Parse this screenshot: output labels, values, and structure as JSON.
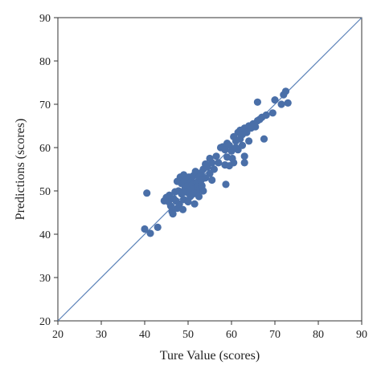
{
  "chart_data": {
    "type": "scatter",
    "title": "",
    "xlabel": "Ture Value (scores)",
    "ylabel": "Predictions (scores)",
    "xlim": [
      20,
      90
    ],
    "ylim": [
      20,
      90
    ],
    "xticks": [
      20,
      30,
      40,
      50,
      60,
      70,
      80,
      90
    ],
    "yticks": [
      20,
      30,
      40,
      50,
      60,
      70,
      80,
      90
    ],
    "grid": false,
    "marker_color": "#4a6fa8",
    "reference_line": {
      "from": [
        20,
        20
      ],
      "to": [
        90,
        90
      ],
      "color": "#5b82b8"
    },
    "points": [
      [
        40.0,
        41.2
      ],
      [
        40.5,
        49.5
      ],
      [
        41.3,
        40.2
      ],
      [
        43.0,
        41.6
      ],
      [
        44.5,
        47.7
      ],
      [
        45.0,
        48.5
      ],
      [
        45.5,
        47.5
      ],
      [
        45.7,
        49.0
      ],
      [
        46.0,
        46.5
      ],
      [
        46.3,
        45.2
      ],
      [
        46.5,
        44.7
      ],
      [
        46.7,
        48.2
      ],
      [
        47.0,
        49.8
      ],
      [
        47.2,
        47.7
      ],
      [
        47.5,
        46.0
      ],
      [
        47.5,
        52.2
      ],
      [
        47.8,
        50.0
      ],
      [
        48.0,
        47.0
      ],
      [
        48.2,
        53.2
      ],
      [
        48.5,
        49.3
      ],
      [
        48.5,
        51.7
      ],
      [
        48.8,
        45.7
      ],
      [
        49.0,
        53.7
      ],
      [
        49.0,
        48.0
      ],
      [
        49.3,
        50.5
      ],
      [
        49.5,
        52.5
      ],
      [
        49.7,
        49.7
      ],
      [
        50.0,
        47.5
      ],
      [
        50.0,
        51.2
      ],
      [
        50.2,
        53.2
      ],
      [
        50.5,
        50.0
      ],
      [
        50.5,
        48.7
      ],
      [
        50.8,
        52.2
      ],
      [
        51.0,
        49.2
      ],
      [
        51.0,
        51.5
      ],
      [
        51.2,
        53.5
      ],
      [
        51.5,
        50.5
      ],
      [
        51.5,
        47.0
      ],
      [
        51.7,
        54.5
      ],
      [
        52.0,
        49.7
      ],
      [
        52.0,
        52.0
      ],
      [
        52.2,
        51.0
      ],
      [
        52.5,
        53.2
      ],
      [
        52.5,
        48.7
      ],
      [
        52.8,
        50.5
      ],
      [
        53.0,
        54.2
      ],
      [
        53.0,
        52.5
      ],
      [
        53.2,
        51.2
      ],
      [
        53.5,
        55.0
      ],
      [
        53.5,
        50.0
      ],
      [
        54.0,
        56.2
      ],
      [
        54.0,
        53.0
      ],
      [
        54.5,
        55.5
      ],
      [
        55.0,
        54.0
      ],
      [
        55.0,
        57.5
      ],
      [
        55.5,
        52.5
      ],
      [
        55.5,
        56.5
      ],
      [
        56.0,
        55.0
      ],
      [
        56.5,
        58.0
      ],
      [
        57.0,
        56.5
      ],
      [
        57.5,
        60.0
      ],
      [
        58.0,
        60.2
      ],
      [
        58.5,
        59.5
      ],
      [
        58.5,
        56.0
      ],
      [
        58.7,
        51.5
      ],
      [
        59.0,
        57.8
      ],
      [
        59.0,
        61.0
      ],
      [
        59.5,
        60.5
      ],
      [
        59.5,
        55.8
      ],
      [
        60.0,
        59.2
      ],
      [
        60.2,
        57.5
      ],
      [
        60.5,
        62.5
      ],
      [
        60.5,
        56.5
      ],
      [
        61.0,
        61.5
      ],
      [
        61.0,
        60.0
      ],
      [
        61.5,
        63.5
      ],
      [
        61.5,
        59.5
      ],
      [
        62.0,
        62.0
      ],
      [
        62.0,
        64.0
      ],
      [
        62.5,
        60.5
      ],
      [
        62.5,
        63.0
      ],
      [
        63.0,
        64.5
      ],
      [
        63.0,
        58.0
      ],
      [
        63.0,
        56.5
      ],
      [
        63.5,
        63.5
      ],
      [
        64.0,
        65.0
      ],
      [
        64.0,
        61.5
      ],
      [
        64.5,
        64.5
      ],
      [
        65.0,
        65.5
      ],
      [
        65.5,
        64.8
      ],
      [
        66.0,
        66.2
      ],
      [
        66.0,
        70.5
      ],
      [
        66.5,
        66.5
      ],
      [
        67.0,
        67.0
      ],
      [
        67.5,
        62.0
      ],
      [
        68.0,
        67.5
      ],
      [
        69.5,
        68.0
      ],
      [
        70.0,
        71.0
      ],
      [
        71.5,
        70.0
      ],
      [
        72.0,
        72.2
      ],
      [
        72.5,
        73.0
      ],
      [
        73.0,
        70.3
      ]
    ]
  }
}
